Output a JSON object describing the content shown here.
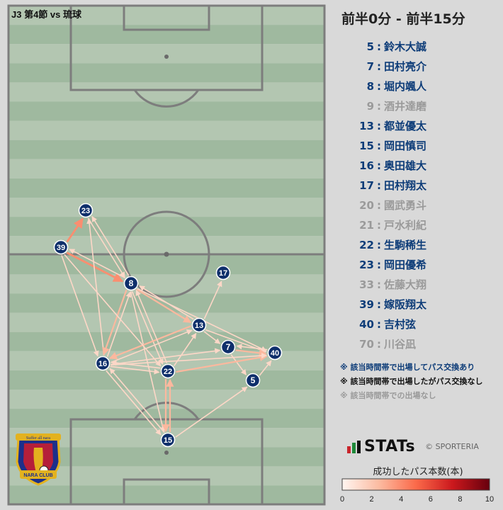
{
  "match_label": "J3 第4節 vs 琉球",
  "period_title": "前半0分 - 前半15分",
  "players": [
    {
      "num": "5",
      "sep": ":",
      "name": "鈴木大誠",
      "status": "active"
    },
    {
      "num": "7",
      "sep": ":",
      "name": "田村亮介",
      "status": "active"
    },
    {
      "num": "8",
      "sep": ":",
      "name": "堀内颯人",
      "status": "active"
    },
    {
      "num": "9",
      "sep": ":",
      "name": "酒井達磨",
      "status": "none"
    },
    {
      "num": "13",
      "sep": ":",
      "name": "都並優太",
      "status": "active"
    },
    {
      "num": "15",
      "sep": ":",
      "name": "岡田慎司",
      "status": "active"
    },
    {
      "num": "16",
      "sep": ":",
      "name": "奥田雄大",
      "status": "active"
    },
    {
      "num": "17",
      "sep": ":",
      "name": "田村翔太",
      "status": "active"
    },
    {
      "num": "20",
      "sep": ":",
      "name": "國武勇斗",
      "status": "none"
    },
    {
      "num": "21",
      "sep": ":",
      "name": "戸水利紀",
      "status": "none"
    },
    {
      "num": "22",
      "sep": ":",
      "name": "生駒稀生",
      "status": "active"
    },
    {
      "num": "23",
      "sep": ":",
      "name": "岡田優希",
      "status": "active"
    },
    {
      "num": "33",
      "sep": ":",
      "name": "佐藤大翔",
      "status": "none"
    },
    {
      "num": "39",
      "sep": ":",
      "name": "嫁阪翔太",
      "status": "active"
    },
    {
      "num": "40",
      "sep": ":",
      "name": "吉村弦",
      "status": "active"
    },
    {
      "num": "70",
      "sep": ":",
      "name": "川谷凪",
      "status": "none"
    }
  ],
  "legend": {
    "active": "※ 該当時間帯で出場してパス交換あり",
    "no_pass": "※ 該当時間帯で出場したがパス交換なし",
    "none": "※ 該当時間帯での出場なし"
  },
  "brand": {
    "logo_text": "STATs",
    "copyright": "© SPORTERIA"
  },
  "colorbar": {
    "title": "成功したパス本数(本)",
    "ticks": [
      "0",
      "2",
      "4",
      "6",
      "8",
      "10"
    ]
  },
  "club_badge": {
    "top_text": "Suffer all nara",
    "bottom_text": "NARA CLUB"
  },
  "colors": {
    "active_text": "#0d3c78",
    "no_pass_text": "#111111",
    "inactive_text": "#9a9a9a",
    "node_fill": "#0e2f6b",
    "pitch_light": "#b3c6b1",
    "pitch_dark": "#9fb99f"
  },
  "nodes": [
    {
      "num": "23"
    },
    {
      "num": "39"
    },
    {
      "num": "8"
    },
    {
      "num": "17"
    },
    {
      "num": "13"
    },
    {
      "num": "7"
    },
    {
      "num": "40"
    },
    {
      "num": "16"
    },
    {
      "num": "22"
    },
    {
      "num": "5"
    },
    {
      "num": "15"
    }
  ],
  "passes": [
    {
      "from": "39",
      "to": "23",
      "count": 3
    },
    {
      "from": "39",
      "to": "8",
      "count": 3
    },
    {
      "from": "8",
      "to": "39",
      "count": 1
    },
    {
      "from": "23",
      "to": "8",
      "count": 1
    },
    {
      "from": "8",
      "to": "23",
      "count": 1
    },
    {
      "from": "39",
      "to": "16",
      "count": 1
    },
    {
      "from": "16",
      "to": "23",
      "count": 1
    },
    {
      "from": "8",
      "to": "16",
      "count": 2
    },
    {
      "from": "16",
      "to": "8",
      "count": 1
    },
    {
      "from": "8",
      "to": "13",
      "count": 2
    },
    {
      "from": "13",
      "to": "8",
      "count": 1
    },
    {
      "from": "8",
      "to": "22",
      "count": 1
    },
    {
      "from": "8",
      "to": "40",
      "count": 1
    },
    {
      "from": "8",
      "to": "15",
      "count": 1
    },
    {
      "from": "13",
      "to": "17",
      "count": 1
    },
    {
      "from": "13",
      "to": "40",
      "count": 1
    },
    {
      "from": "13",
      "to": "7",
      "count": 1
    },
    {
      "from": "13",
      "to": "16",
      "count": 2
    },
    {
      "from": "16",
      "to": "13",
      "count": 1
    },
    {
      "from": "22",
      "to": "13",
      "count": 1
    },
    {
      "from": "7",
      "to": "40",
      "count": 2
    },
    {
      "from": "40",
      "to": "7",
      "count": 1
    },
    {
      "from": "7",
      "to": "5",
      "count": 1
    },
    {
      "from": "5",
      "to": "40",
      "count": 1
    },
    {
      "from": "22",
      "to": "40",
      "count": 2
    },
    {
      "from": "16",
      "to": "22",
      "count": 1
    },
    {
      "from": "22",
      "to": "16",
      "count": 1
    },
    {
      "from": "16",
      "to": "40",
      "count": 1
    },
    {
      "from": "22",
      "to": "15",
      "count": 2
    },
    {
      "from": "15",
      "to": "22",
      "count": 2
    },
    {
      "from": "16",
      "to": "15",
      "count": 1
    },
    {
      "from": "15",
      "to": "16",
      "count": 1
    },
    {
      "from": "15",
      "to": "5",
      "count": 1
    },
    {
      "from": "39",
      "to": "22",
      "count": 1
    },
    {
      "from": "22",
      "to": "8",
      "count": 1
    },
    {
      "from": "16",
      "to": "7",
      "count": 1
    }
  ]
}
